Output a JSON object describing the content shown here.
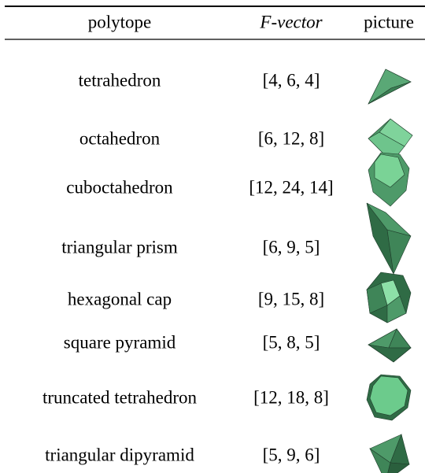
{
  "table": {
    "header": [
      "polytope",
      "F-vector",
      "picture"
    ],
    "rows": [
      [
        "tetrahedron",
        "[4, 6, 4]"
      ],
      [
        "octahedron",
        "[6, 12, 8]"
      ],
      [
        "cuboctahedron",
        "[12, 24, 14]"
      ],
      [
        "triangular prism",
        "[6, 9, 5]"
      ],
      [
        "hexagonal cap",
        "[9, 15, 8]"
      ],
      [
        "square pyramid",
        "[5, 8, 5]"
      ],
      [
        "truncated tetrahedron",
        "[12, 18, 8]"
      ],
      [
        "triangular dipyramid",
        "[5, 9, 6]"
      ]
    ]
  }
}
